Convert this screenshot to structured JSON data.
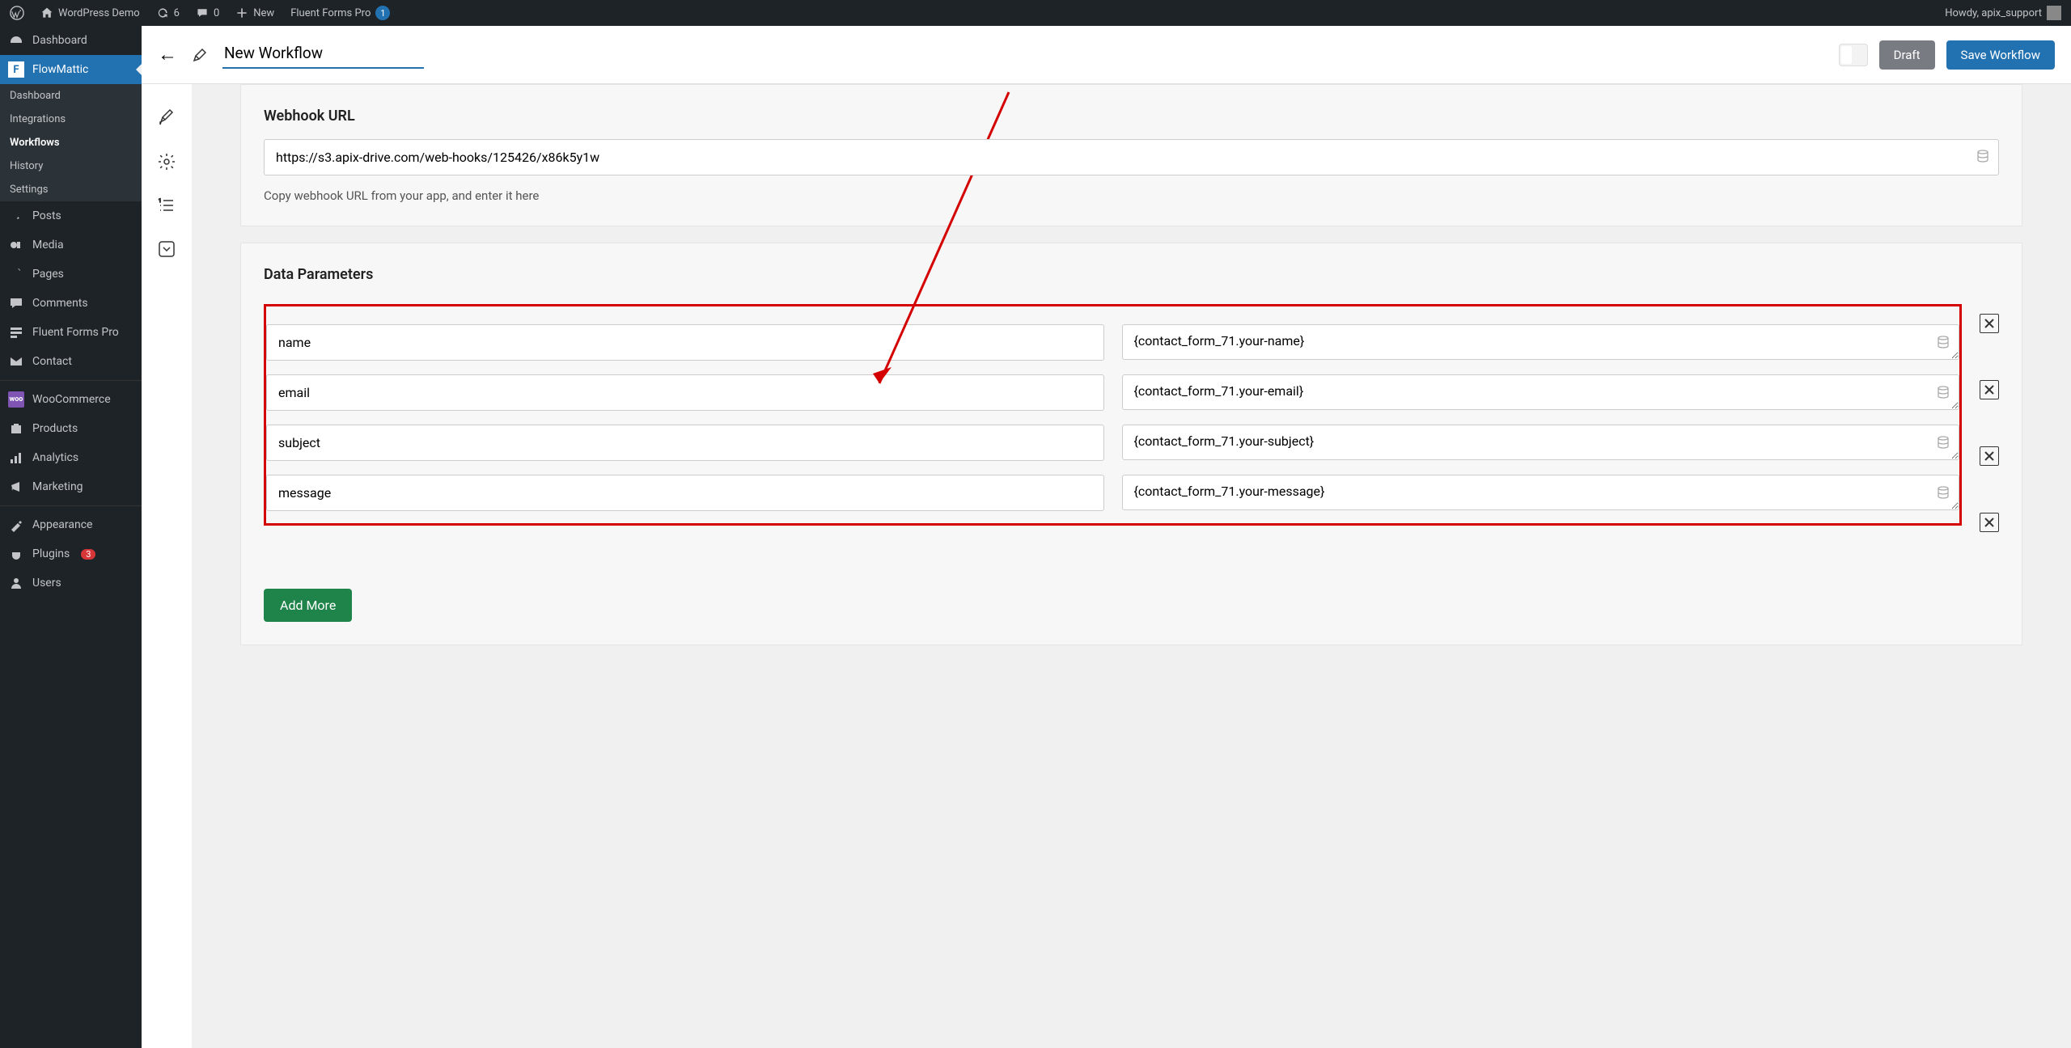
{
  "adminbar": {
    "site_name": "WordPress Demo",
    "updates": "6",
    "comments": "0",
    "new": "New",
    "fluent_forms": "Fluent Forms Pro",
    "fluent_badge": "1",
    "howdy": "Howdy, apix_support"
  },
  "sidebar": {
    "dashboard": "Dashboard",
    "flowmattic": "FlowMattic",
    "sub": {
      "dashboard": "Dashboard",
      "integrations": "Integrations",
      "workflows": "Workflows",
      "history": "History",
      "settings": "Settings"
    },
    "posts": "Posts",
    "media": "Media",
    "pages": "Pages",
    "comments": "Comments",
    "fluent_forms": "Fluent Forms Pro",
    "contact": "Contact",
    "woocommerce": "WooCommerce",
    "products": "Products",
    "analytics": "Analytics",
    "marketing": "Marketing",
    "appearance": "Appearance",
    "plugins": "Plugins",
    "plugins_count": "3",
    "users": "Users"
  },
  "topbar": {
    "title_value": "New Workflow",
    "draft": "Draft",
    "save": "Save Workflow"
  },
  "webhook": {
    "title": "Webhook URL",
    "url": "https://s3.apix-drive.com/web-hooks/125426/x86k5y1w",
    "helper": "Copy webhook URL from your app, and enter it here"
  },
  "params": {
    "title": "Data Parameters",
    "rows": [
      {
        "key": "name",
        "value": "{contact_form_71.your-name}"
      },
      {
        "key": "email",
        "value": "{contact_form_71.your-email}"
      },
      {
        "key": "subject",
        "value": "{contact_form_71.your-subject}"
      },
      {
        "key": "message",
        "value": "{contact_form_71.your-message}"
      }
    ],
    "add_more": "Add More"
  }
}
